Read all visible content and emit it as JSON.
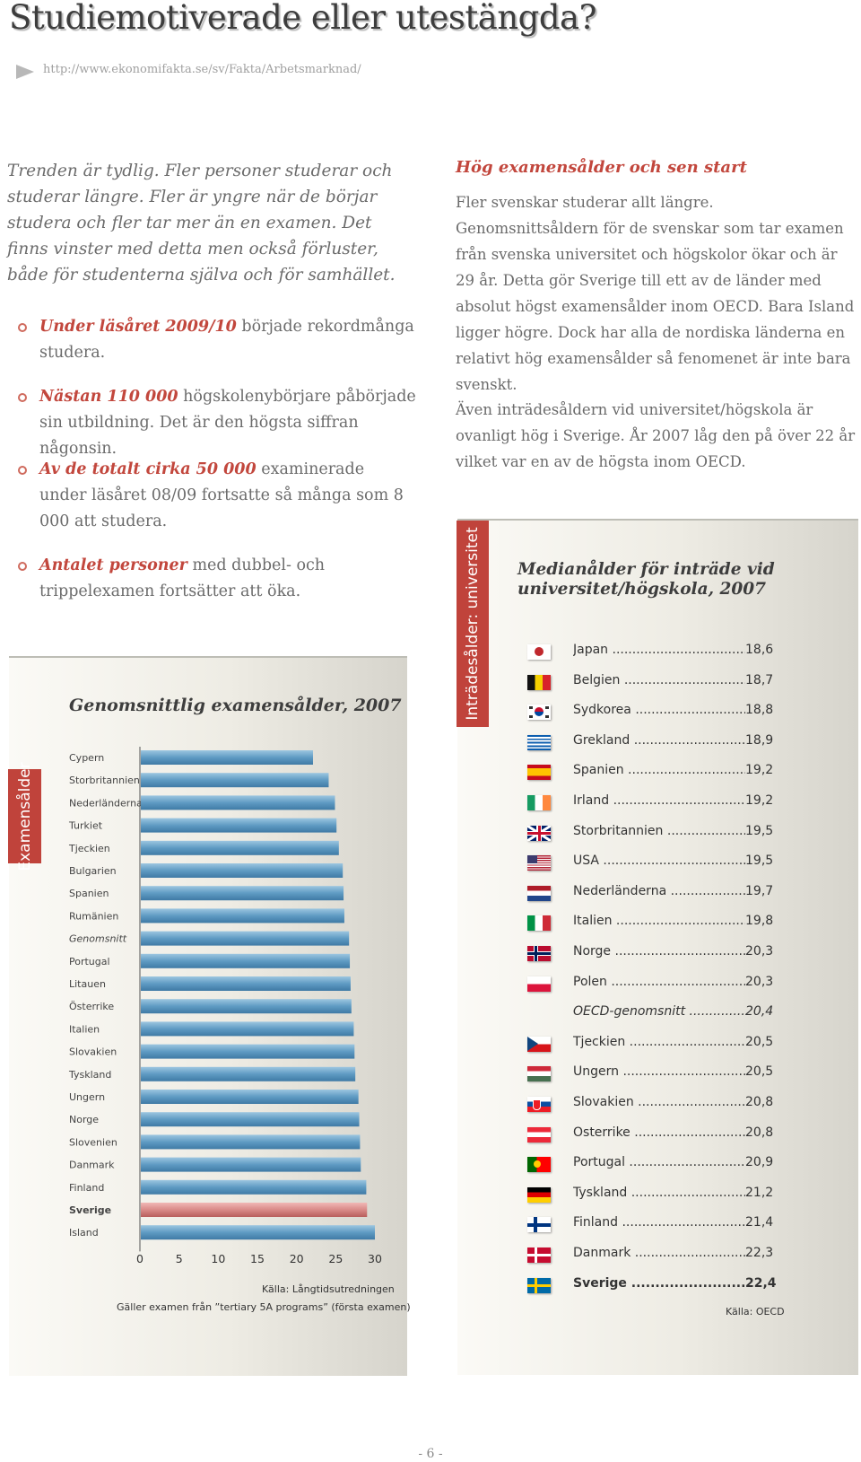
{
  "header": {
    "title": "Studiemotiverade eller utestängda?",
    "url": "http://www.ekonomifakta.se/sv/Fakta/Arbetsmarknad/"
  },
  "intro": "Trenden är tydlig. Fler personer studerar och studerar längre. Fler är yngre när de börjar studera och fler tar mer än en examen. Det finns vinster med detta men också förluster, både för studenterna själva och för samhället.",
  "bullets": [
    {
      "em": "Under läsåret 2009/10",
      "text": " började rekordmånga studera."
    },
    {
      "em": "Nästan 110 000",
      "text": " högskolenybörjare påbörjade sin utbildning. Det är den högsta siffran någonsin."
    },
    {
      "em": "Av de totalt cirka 50 000",
      "text": " examinerade under läsåret 08/09 fortsatte så många som 8 000 att studera."
    },
    {
      "em": "Antalet personer",
      "text": " med dubbel- och trippelexamen fortsätter att öka."
    }
  ],
  "right": {
    "heading": "Hög examensålder och sen start",
    "para1": "Fler svenskar studerar allt längre. Genomsnittsåldern för de svenskar som tar examen från svenska universitet och högskolor ökar och är 29 år. Detta gör Sverige till ett av de länder med absolut högst examensålder inom OECD. Bara Island ligger högre. Dock har alla de nordiska länderna en relativt hög examensålder så fenomenet är inte bara svenskt.",
    "para2": "Även inträdesåldern vid universitet/högskola är ovanligt hög i Sverige. År 2007 låg den på över 22 år vilket var en av de högsta inom OECD."
  },
  "chart_data": [
    {
      "type": "bar",
      "orientation": "horizontal",
      "title": "Genomsnittlig examensålder, 2007",
      "tab_label": "Examensålder",
      "categories": [
        "Cypern",
        "Storbritannien",
        "Nederländerna",
        "Turkiet",
        "Tjeckien",
        "Bulgarien",
        "Spanien",
        "Rumänien",
        "Genomsnitt",
        "Portugal",
        "Litauen",
        "Österrike",
        "Italien",
        "Slovakien",
        "Tyskland",
        "Ungern",
        "Norge",
        "Slovenien",
        "Danmark",
        "Finland",
        "Sverige",
        "Island"
      ],
      "values": [
        22.1,
        24.1,
        24.9,
        25.1,
        25.4,
        25.9,
        26.0,
        26.1,
        26.7,
        26.8,
        26.9,
        27.0,
        27.3,
        27.4,
        27.5,
        27.9,
        28.0,
        28.1,
        28.2,
        28.9,
        29.0,
        30.0
      ],
      "highlight": "Sverige",
      "highlight_color": "#d98a88",
      "bar_color": "#5f9bc3",
      "xlim": [
        0,
        30
      ],
      "xticks": [
        0,
        5,
        10,
        15,
        20,
        25,
        30
      ],
      "source": "Källa: Långtidsutredningen",
      "note": "Gäller examen från ”tertiary 5A programs” (första examen)"
    },
    {
      "type": "table",
      "title": "Medianålder för inträde vid universitet/högskola, 2007",
      "tab_label": "Inträdesålder: universitet",
      "rows": [
        {
          "country": "Japan",
          "value": "18,6",
          "flag": "japan-flag"
        },
        {
          "country": "Belgien",
          "value": "18,7",
          "flag": "belgium-flag"
        },
        {
          "country": "Sydkorea",
          "value": "18,8",
          "flag": "south-korea-flag"
        },
        {
          "country": "Grekland",
          "value": "18,9",
          "flag": "greece-flag"
        },
        {
          "country": "Spanien",
          "value": "19,2",
          "flag": "spain-flag"
        },
        {
          "country": "Irland",
          "value": "19,2",
          "flag": "ireland-flag"
        },
        {
          "country": "Storbritannien",
          "value": "19,5",
          "flag": "uk-flag"
        },
        {
          "country": "USA",
          "value": "19,5",
          "flag": "usa-flag"
        },
        {
          "country": "Nederländerna",
          "value": "19,7",
          "flag": "netherlands-flag"
        },
        {
          "country": "Italien",
          "value": "19,8",
          "flag": "italy-flag"
        },
        {
          "country": "Norge",
          "value": "20,3",
          "flag": "norway-flag"
        },
        {
          "country": "Polen",
          "value": "20,3",
          "flag": "poland-flag"
        },
        {
          "country": "OECD-genomsnitt",
          "value": "20,4",
          "flag": "",
          "style": "italic"
        },
        {
          "country": "Tjeckien",
          "value": "20,5",
          "flag": "czech-flag"
        },
        {
          "country": "Ungern",
          "value": "20,5",
          "flag": "hungary-flag"
        },
        {
          "country": "Slovakien",
          "value": "20,8",
          "flag": "slovakia-flag"
        },
        {
          "country": "Österrike",
          "value": "20,8",
          "flag": "austria-flag"
        },
        {
          "country": "Portugal",
          "value": "20,9",
          "flag": "portugal-flag"
        },
        {
          "country": "Tyskland",
          "value": "21,2",
          "flag": "germany-flag"
        },
        {
          "country": "Finland",
          "value": "21,4",
          "flag": "finland-flag"
        },
        {
          "country": "Danmark",
          "value": "22,3",
          "flag": "denmark-flag"
        },
        {
          "country": "Sverige",
          "value": "22,4",
          "flag": "sweden-flag",
          "style": "bold"
        }
      ],
      "source": "Källa: OECD"
    }
  ],
  "footer": {
    "page": "- 6 -"
  }
}
